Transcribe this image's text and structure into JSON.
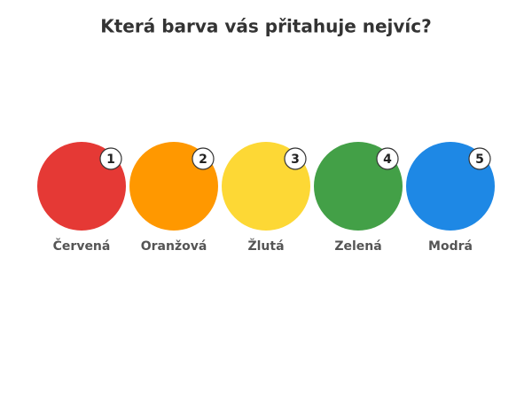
{
  "title": "Která barva vás přitahuje nejvíc?",
  "options": [
    {
      "number": "1",
      "label": "Červená",
      "color": "#e53935"
    },
    {
      "number": "2",
      "label": "Oranžová",
      "color": "#ff9800"
    },
    {
      "number": "3",
      "label": "Žlutá",
      "color": "#fdd835"
    },
    {
      "number": "4",
      "label": "Zelená",
      "color": "#43a047"
    },
    {
      "number": "5",
      "label": "Modrá",
      "color": "#1e88e5"
    }
  ]
}
